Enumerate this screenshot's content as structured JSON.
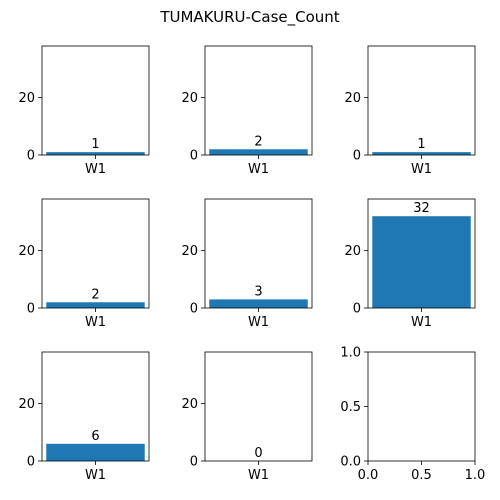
{
  "chart_data": {
    "title": "TUMAKURU-Case_Count",
    "type": "bar",
    "bar_color": "#1f77b4",
    "layout": "3x3 grid",
    "subplots": [
      {
        "type": "bar",
        "categories": [
          "W1"
        ],
        "values": [
          1
        ],
        "ylim": [
          0,
          38
        ],
        "yticks": [
          0,
          20
        ]
      },
      {
        "type": "bar",
        "categories": [
          "W1"
        ],
        "values": [
          2
        ],
        "ylim": [
          0,
          38
        ],
        "yticks": [
          0,
          20
        ]
      },
      {
        "type": "bar",
        "categories": [
          "W1"
        ],
        "values": [
          1
        ],
        "ylim": [
          0,
          38
        ],
        "yticks": [
          0,
          20
        ]
      },
      {
        "type": "bar",
        "categories": [
          "W1"
        ],
        "values": [
          2
        ],
        "ylim": [
          0,
          38
        ],
        "yticks": [
          0,
          20
        ]
      },
      {
        "type": "bar",
        "categories": [
          "W1"
        ],
        "values": [
          3
        ],
        "ylim": [
          0,
          38
        ],
        "yticks": [
          0,
          20
        ]
      },
      {
        "type": "bar",
        "categories": [
          "W1"
        ],
        "values": [
          32
        ],
        "ylim": [
          0,
          38
        ],
        "yticks": [
          0,
          20
        ]
      },
      {
        "type": "bar",
        "categories": [
          "W1"
        ],
        "values": [
          6
        ],
        "ylim": [
          0,
          38
        ],
        "yticks": [
          0,
          20
        ]
      },
      {
        "type": "bar",
        "categories": [
          "W1"
        ],
        "values": [
          0
        ],
        "ylim": [
          0,
          38
        ],
        "yticks": [
          0,
          20
        ]
      },
      {
        "type": "empty",
        "xlim": [
          0,
          1
        ],
        "ylim": [
          0,
          1
        ],
        "xticks": [
          "0.0",
          "0.5",
          "1.0"
        ],
        "yticks": [
          "0.0",
          "0.5",
          "1.0"
        ]
      }
    ]
  }
}
